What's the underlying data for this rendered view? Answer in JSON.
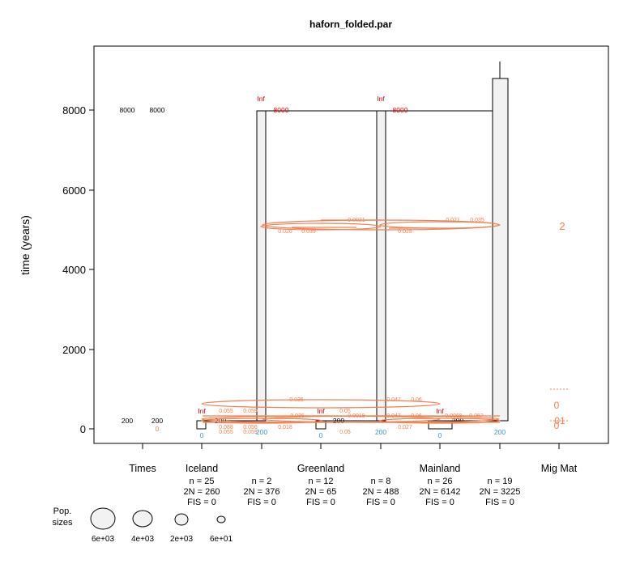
{
  "title": "haforn_folded.par",
  "y_axis": {
    "label": "time (years)",
    "ticks": [
      "0",
      "2000",
      "4000",
      "6000",
      "8000"
    ]
  },
  "columns": [
    "Times",
    "Iceland",
    "Greenland",
    "Mainland",
    "Mig Mat"
  ],
  "times_column": {
    "top": [
      "8000",
      "8000"
    ],
    "bottom": [
      "200",
      "200"
    ],
    "zero": "0"
  },
  "populations": [
    {
      "stats": [
        "n = 25",
        "2N = 260",
        "FIS = 0"
      ]
    },
    {
      "stats": [
        "n = 2",
        "2N = 376",
        "FIS = 0"
      ]
    },
    {
      "stats": [
        "n = 12",
        "2N = 65",
        "FIS = 0"
      ]
    },
    {
      "stats": [
        "n = 8",
        "2N = 488",
        "FIS = 0"
      ]
    },
    {
      "stats": [
        "n = 26",
        "2N = 6142",
        "FIS = 0"
      ]
    },
    {
      "stats": [
        "n = 19",
        "2N = 3225",
        "FIS = 0"
      ]
    }
  ],
  "labels": {
    "inf": "Inf",
    "t8000": "8000",
    "t200": "200",
    "zero": "0"
  },
  "migration_labels_upper": [
    "0.0021",
    "0.026",
    "0.039",
    "0.021",
    "0.035",
    "0.028"
  ],
  "migration_labels_lower": [
    "0.035",
    "0.05",
    "0.047",
    "0.06",
    "0.0018",
    "0.035",
    "0.0068",
    "0.052",
    "0.047",
    "0.06",
    "0.055",
    "0.059",
    "0.088",
    "0.056",
    "0.055",
    "0.059",
    "0.05",
    "0.027",
    "0.018"
  ],
  "mig_mat": {
    "upper": "2",
    "lower": [
      "0",
      "01",
      "0"
    ]
  },
  "legend": {
    "title_line1": "Pop.",
    "title_line2": "sizes",
    "values": [
      "6e+03",
      "4e+03",
      "2e+03",
      "6e+01"
    ]
  },
  "colors": {
    "red": "#ff0000",
    "orange": "#f08050",
    "blue": "#3399dd",
    "bar_fill": "#f2f2f2"
  }
}
